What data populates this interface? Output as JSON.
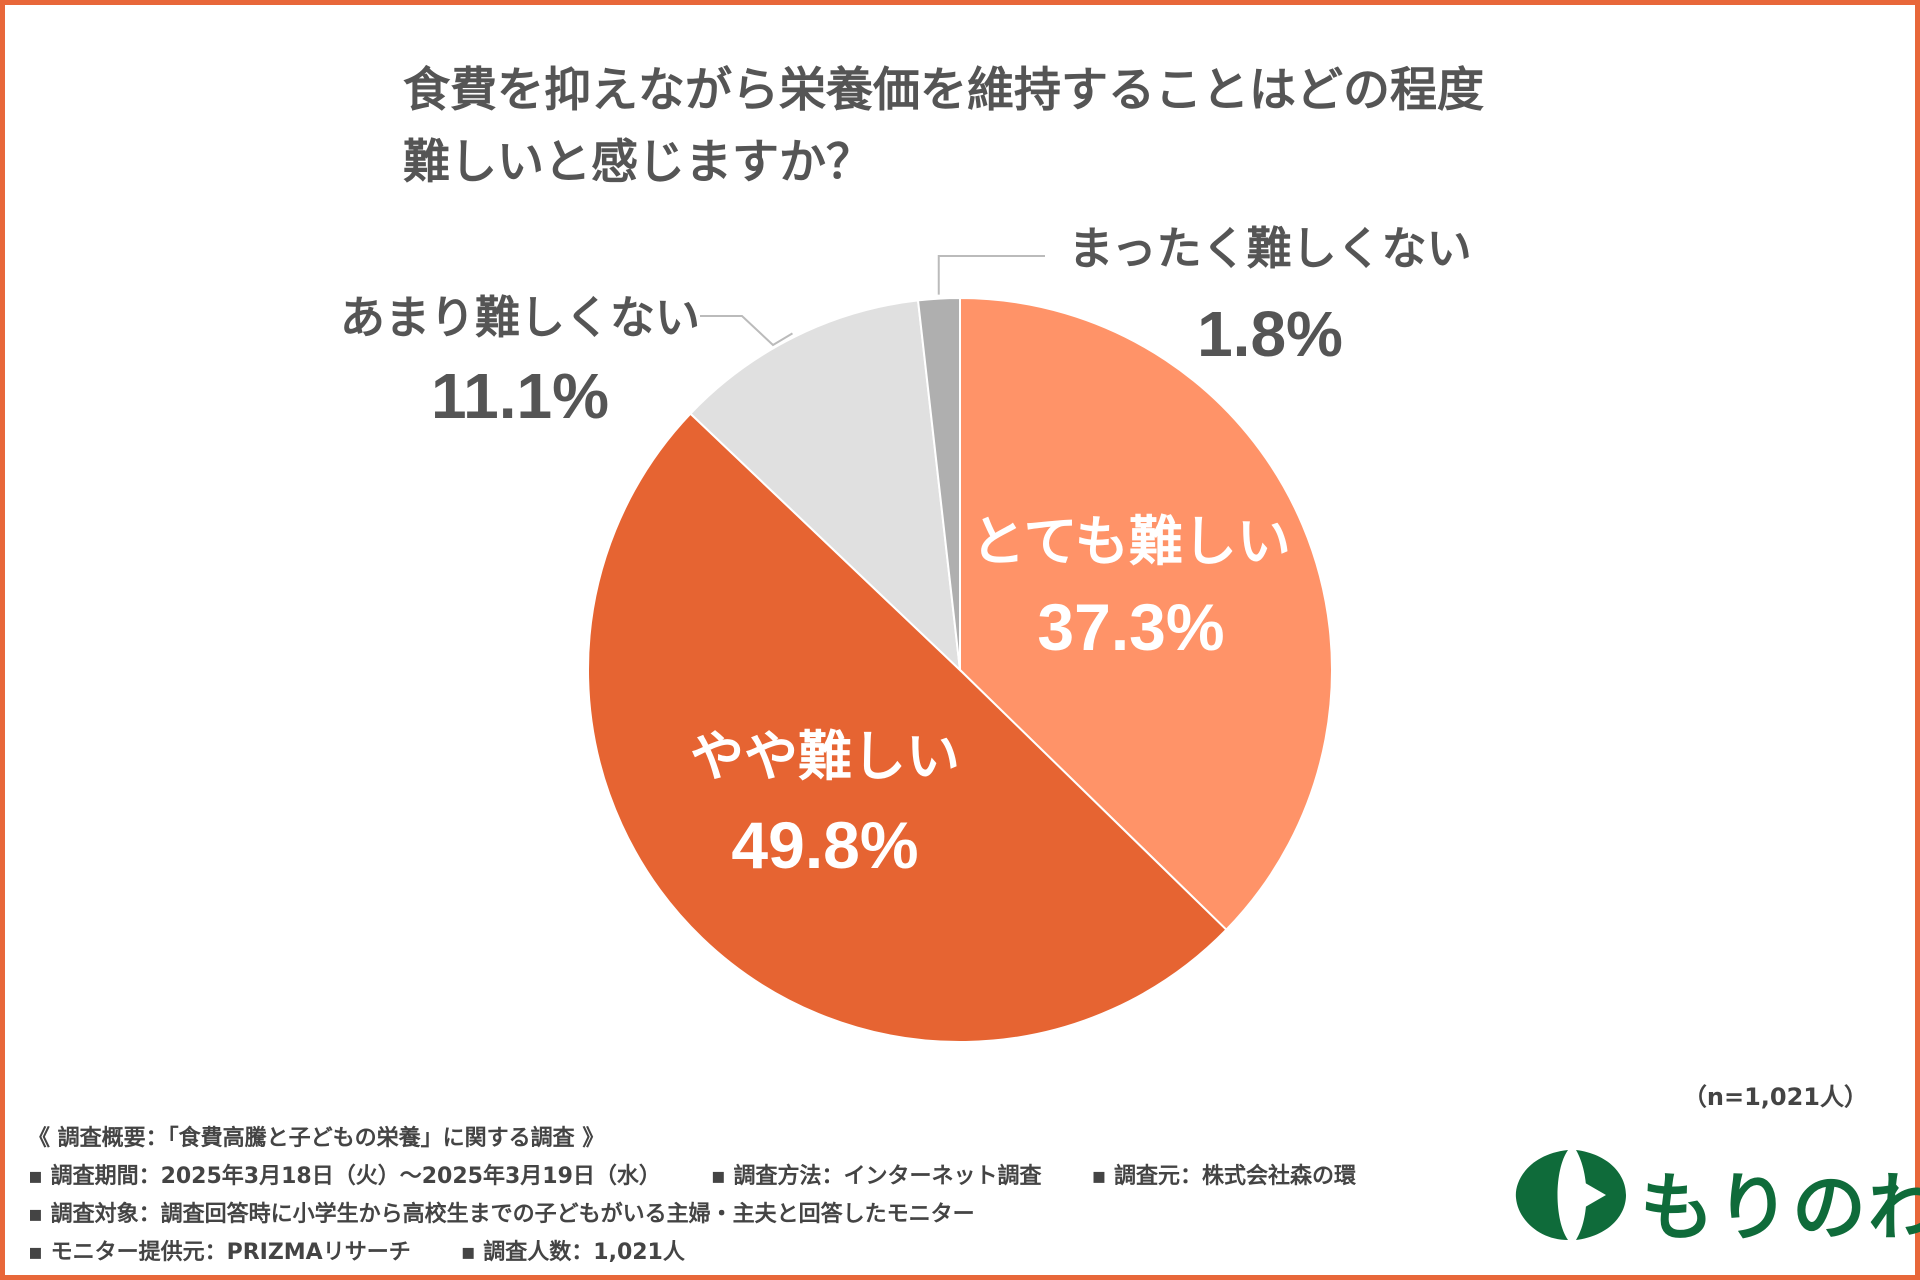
{
  "chart_data": {
    "type": "pie",
    "title_lines": [
      "食費を抑えながら栄養価を維持することはどの程度",
      "難しいと感じますか？"
    ],
    "slices": [
      {
        "label": "とても難しい",
        "value": 37.3,
        "display": "37.3%",
        "color": "#ff9368"
      },
      {
        "label": "やや難しい",
        "value": 49.8,
        "display": "49.8%",
        "color": "#e66432"
      },
      {
        "label": "あまり難しくない",
        "value": 11.1,
        "display": "11.1%",
        "color": "#e0e0e0"
      },
      {
        "label": "まったく難しくない",
        "value": 1.8,
        "display": "1.8%",
        "color": "#afafaf"
      }
    ],
    "start": "12 o'clock",
    "direction": "clockwise",
    "sample_note": "（n=1,021人）"
  },
  "survey": {
    "heading": "《 調査概要：「食費高騰と子どもの栄養」に関する調査 》",
    "period": "▪ 調査期間：2025年3月18日（火）～2025年3月19日（水）",
    "method": "▪ 調査方法：インターネット調査",
    "source": "▪ 調査元：株式会社森の環",
    "target": "▪ 調査対象：調査回答時に小学生から高校生までの子どもがいる主婦・主夫と回答したモニター",
    "provider": "▪ モニター提供元：PRIZMAリサーチ",
    "count": "▪ 調査人数：1,021人"
  },
  "logo": {
    "text": "もりのわ",
    "color": "#0f6b3a",
    "icon": "leaf-icon"
  },
  "colors": {
    "border": "#e8673a",
    "text": "#555555"
  }
}
